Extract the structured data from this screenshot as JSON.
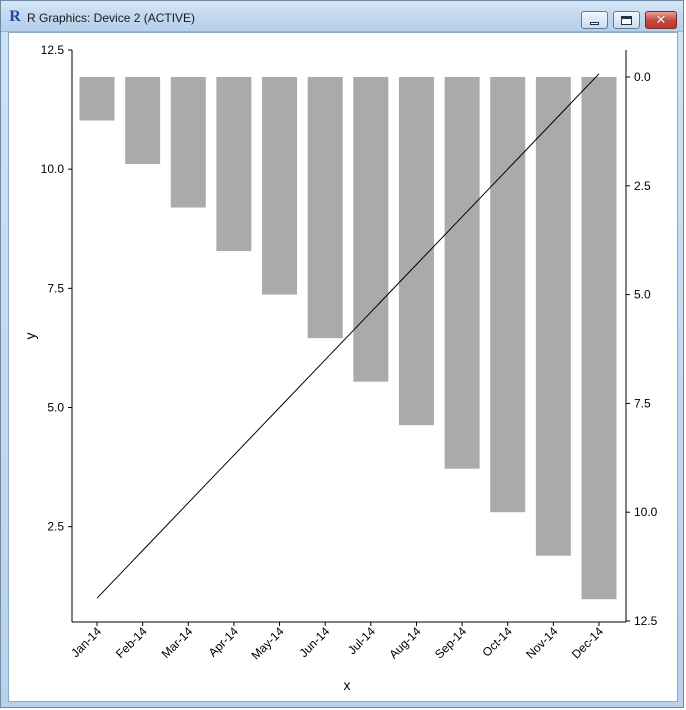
{
  "window": {
    "title": "R Graphics: Device 2 (ACTIVE)",
    "icon": "r-logo-icon",
    "controls": {
      "minimize": "minimize-icon",
      "maximize": "maximize-icon",
      "close": "close-icon"
    }
  },
  "chart_data": {
    "type": "bar",
    "title": "",
    "xlabel": "x",
    "ylabel": "y",
    "ylabel_right": "",
    "categories": [
      "Jan-14",
      "Feb-14",
      "Mar-14",
      "Apr-14",
      "May-14",
      "Jun-14",
      "Jul-14",
      "Aug-14",
      "Sep-14",
      "Oct-14",
      "Nov-14",
      "Dec-14"
    ],
    "series": [
      {
        "type": "bar",
        "axis": "right",
        "color": "#aaaaaa",
        "values": [
          1,
          2,
          3,
          4,
          5,
          6,
          7,
          8,
          9,
          10,
          11,
          12
        ]
      },
      {
        "type": "line",
        "axis": "left",
        "color": "#000000",
        "values": [
          1,
          2,
          3,
          4,
          5,
          6,
          7,
          8,
          9,
          10,
          11,
          12
        ]
      }
    ],
    "left_axis": {
      "ylim": [
        0.5,
        12.5
      ],
      "ticks": [
        2.5,
        5.0,
        7.5,
        10.0,
        12.5
      ],
      "tick_labels": [
        "2.5",
        "5.0",
        "7.5",
        "10.0",
        "12.5"
      ]
    },
    "right_axis": {
      "ylim": [
        0,
        12.5
      ],
      "reversed": true,
      "ticks": [
        0.0,
        2.5,
        5.0,
        7.5,
        10.0,
        12.5
      ],
      "tick_labels": [
        "0.0",
        "2.5",
        "5.0",
        "7.5",
        "10.0",
        "12.5"
      ]
    },
    "grid": false,
    "legend": "none"
  }
}
